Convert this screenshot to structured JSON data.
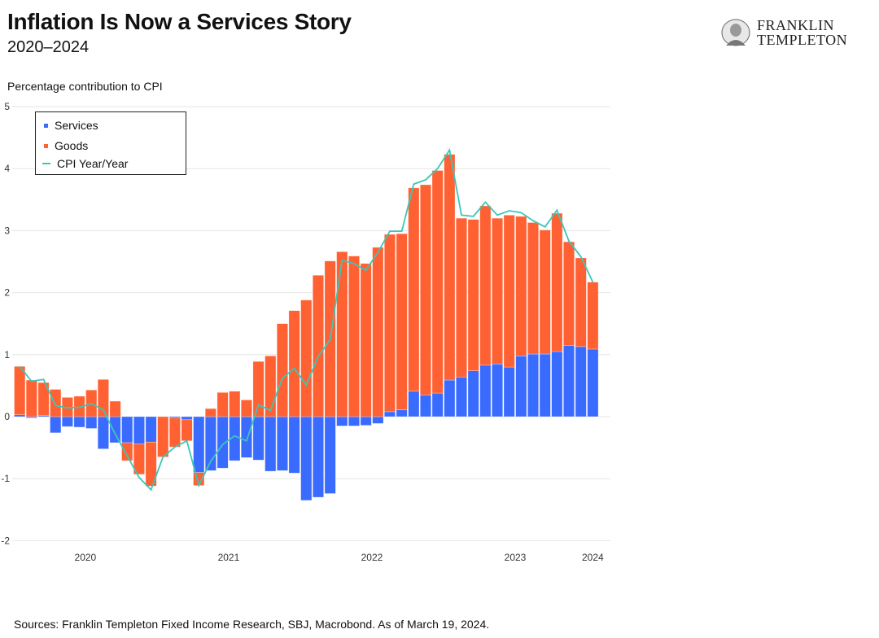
{
  "header": {
    "title": "Inflation Is Now a Services Story",
    "subtitle": "2020–2024",
    "logo_text_line1": "FRANKLIN",
    "logo_text_line2": "TEMPLETON"
  },
  "footer": {
    "source": "Sources: Franklin Templeton Fixed Income Research, SBJ, Macrobond. As of March 19, 2024."
  },
  "chart_data": {
    "type": "bar",
    "stacked": true,
    "title": "Inflation Is Now a Services Story",
    "subtitle": "2020–2024",
    "ylabel": "Percentage contribution to CPI",
    "xlabel": "",
    "ylim": [
      -2,
      5
    ],
    "yticks": [
      "-2",
      "-1",
      "0",
      "1",
      "2",
      "3",
      "4",
      "5"
    ],
    "xtick_labels": [
      "2020",
      "2021",
      "2022",
      "2023",
      "2024"
    ],
    "grid": true,
    "legend_placement": "top-left",
    "colors": {
      "Services": "#3a6bff",
      "Goods": "#ff6133",
      "CPI Year/Year": "#3cc6b8"
    },
    "categories": [
      "2020-01",
      "2020-02",
      "2020-03",
      "2020-04",
      "2020-05",
      "2020-06",
      "2020-07",
      "2020-08",
      "2020-09",
      "2020-10",
      "2020-11",
      "2020-12",
      "2021-01",
      "2021-02",
      "2021-03",
      "2021-04",
      "2021-05",
      "2021-06",
      "2021-07",
      "2021-08",
      "2021-09",
      "2021-10",
      "2021-11",
      "2021-12",
      "2022-01",
      "2022-02",
      "2022-03",
      "2022-04",
      "2022-05",
      "2022-06",
      "2022-07",
      "2022-08",
      "2022-09",
      "2022-10",
      "2022-11",
      "2022-12",
      "2023-01",
      "2023-02",
      "2023-03",
      "2023-04",
      "2023-05",
      "2023-06",
      "2023-07",
      "2023-08",
      "2023-09",
      "2023-10",
      "2023-11",
      "2023-12",
      "2024-01"
    ],
    "series": [
      {
        "name": "Services",
        "type": "bar",
        "values": [
          0.03,
          -0.02,
          0.02,
          -0.26,
          -0.16,
          -0.17,
          -0.19,
          -0.52,
          -0.42,
          -0.42,
          -0.44,
          -0.41,
          0.0,
          -0.02,
          -0.05,
          -0.9,
          -0.87,
          -0.83,
          -0.71,
          -0.66,
          -0.7,
          -0.88,
          -0.87,
          -0.91,
          -1.35,
          -1.3,
          -1.24,
          -0.15,
          -0.15,
          -0.14,
          -0.11,
          0.08,
          0.11,
          0.41,
          0.35,
          0.38,
          0.59,
          0.64,
          0.74,
          0.83,
          0.85,
          0.8,
          0.98,
          1.01,
          1.01,
          1.05,
          1.15,
          1.13,
          1.09
        ]
      },
      {
        "name": "Goods",
        "type": "bar",
        "values": [
          0.78,
          0.59,
          0.53,
          0.44,
          0.31,
          0.33,
          0.43,
          0.6,
          0.25,
          -0.29,
          -0.49,
          -0.71,
          -0.65,
          -0.47,
          -0.34,
          -0.21,
          0.13,
          0.39,
          0.41,
          0.27,
          0.89,
          0.98,
          1.5,
          1.71,
          1.88,
          2.28,
          2.51,
          2.66,
          2.59,
          2.47,
          2.73,
          2.86,
          2.84,
          3.28,
          3.39,
          3.59,
          3.64,
          2.56,
          2.44,
          2.57,
          2.35,
          2.45,
          2.25,
          2.12,
          2.0,
          2.23,
          1.67,
          1.43,
          1.08
        ]
      },
      {
        "name": "CPI Year/Year",
        "type": "line",
        "values": [
          0.81,
          0.57,
          0.6,
          0.18,
          0.14,
          0.15,
          0.21,
          0.11,
          -0.28,
          -0.63,
          -0.98,
          -1.18,
          -0.65,
          -0.49,
          -0.39,
          -1.11,
          -0.72,
          -0.45,
          -0.31,
          -0.39,
          0.19,
          0.1,
          0.62,
          0.78,
          0.51,
          0.97,
          1.24,
          2.52,
          2.47,
          2.36,
          2.65,
          2.99,
          2.99,
          3.75,
          3.82,
          4.0,
          4.3,
          3.25,
          3.23,
          3.46,
          3.25,
          3.32,
          3.29,
          3.16,
          3.06,
          3.33,
          2.83,
          2.58,
          2.17
        ]
      }
    ]
  }
}
